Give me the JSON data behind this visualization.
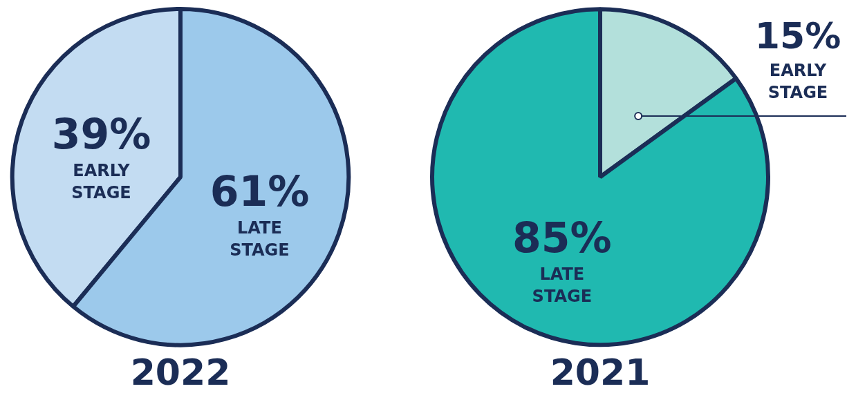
{
  "chart_data": [
    {
      "type": "pie",
      "title": "2022",
      "categories": [
        "EARLY STAGE",
        "LATE STAGE"
      ],
      "values": [
        39,
        61
      ],
      "value_labels": [
        "39%",
        "61%"
      ],
      "colors": [
        "#c3dcf2",
        "#9cc9eb"
      ],
      "legend": false
    },
    {
      "type": "pie",
      "title": "2021",
      "categories": [
        "EARLY STAGE",
        "LATE STAGE"
      ],
      "values": [
        15,
        85
      ],
      "value_labels": [
        "15%",
        "85%"
      ],
      "colors": [
        "#b3e0db",
        "#20b9b0"
      ],
      "legend": false
    }
  ]
}
